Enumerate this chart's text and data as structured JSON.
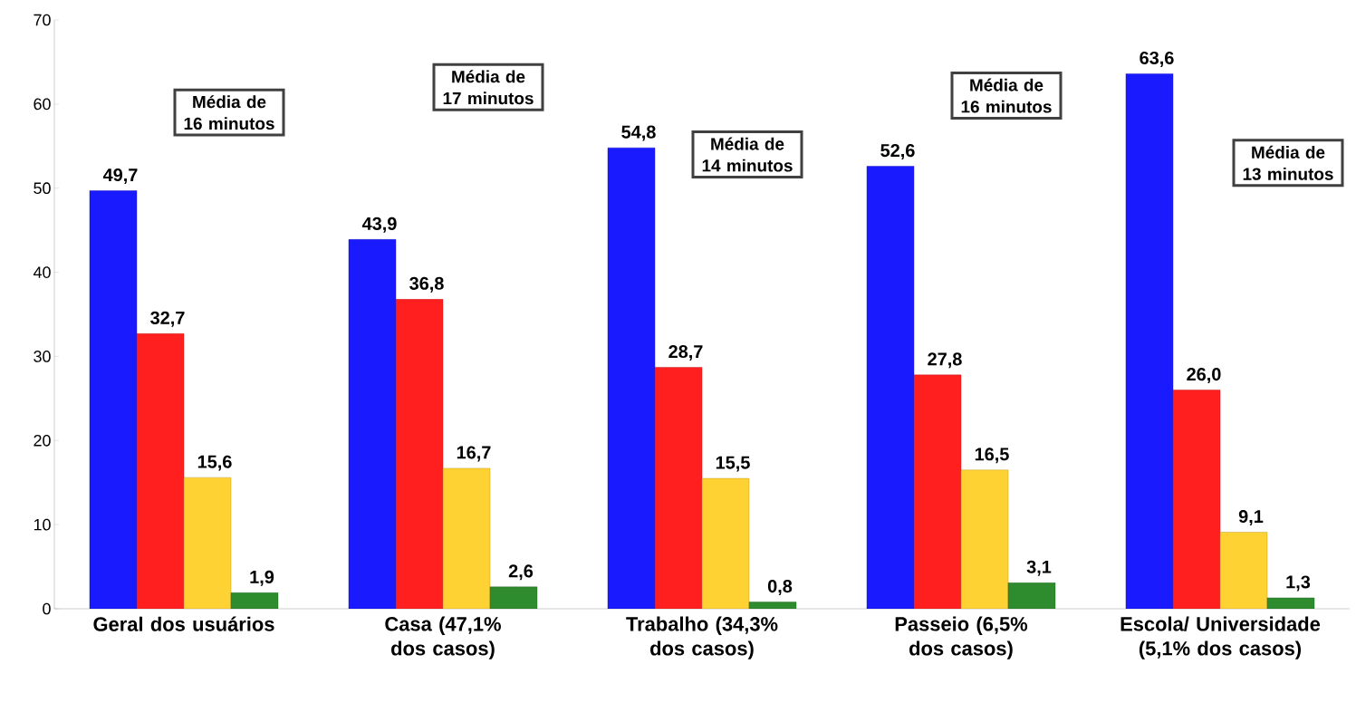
{
  "chart_data": {
    "type": "bar",
    "categories": [
      "Geral dos usuários",
      "Casa (47,1% dos casos)",
      "Trabalho (34,3% dos casos)",
      "Passeio (6,5% dos casos)",
      "Escola/ Universidade (5,1% dos casos)"
    ],
    "series": [
      {
        "color": "#1a1aff",
        "values": [
          49.7,
          43.9,
          54.8,
          52.6,
          63.6
        ],
        "value_labels": [
          "49,7",
          "43,9",
          "54,8",
          "52,6",
          "63,6"
        ]
      },
      {
        "color": "#ff1f1f",
        "values": [
          32.7,
          36.8,
          28.7,
          27.8,
          26.0
        ],
        "value_labels": [
          "32,7",
          "36,8",
          "28,7",
          "27,8",
          "26,0"
        ]
      },
      {
        "color": "#ffd233",
        "values": [
          15.6,
          16.7,
          15.5,
          16.5,
          9.1
        ],
        "value_labels": [
          "15,6",
          "16,7",
          "15,5",
          "16,5",
          "9,1"
        ]
      },
      {
        "color": "#2e8b2e",
        "values": [
          1.9,
          2.6,
          0.8,
          3.1,
          1.3
        ],
        "value_labels": [
          "1,9",
          "2,6",
          "0,8",
          "3,1",
          "1,3"
        ]
      }
    ],
    "annotations": [
      "Média de 16 minutos",
      "Média de 17 minutos",
      "Média de 14 minutos",
      "Média de 16 minutos",
      "Média de 13 minutos"
    ],
    "ylim": [
      0,
      70
    ],
    "yticks": [
      0,
      10,
      20,
      30,
      40,
      50,
      60,
      70
    ],
    "grid": false
  }
}
